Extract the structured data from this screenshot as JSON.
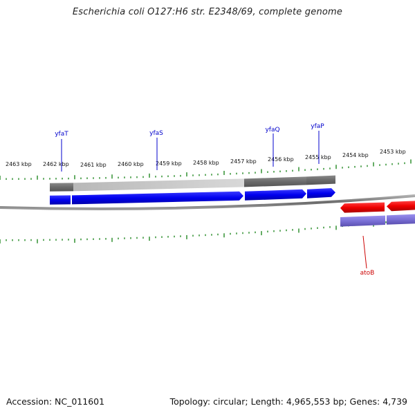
{
  "title": "Escherichia coli O127:H6 str. E2348/69, complete genome",
  "footer": {
    "accession": "Accession: NC_011601",
    "summary": "Topology: circular; Length: 4,965,553 bp; Genes: 4,739"
  },
  "ruler_labels": [
    "2463 kbp",
    "2462 kbp",
    "2461 kbp",
    "2460 kbp",
    "2459 kbp",
    "2458 kbp",
    "2457 kbp",
    "2456 kbp",
    "2455 kbp",
    "2454 kbp",
    "2453 kbp"
  ],
  "genes": [
    "yfaT",
    "yfaS",
    "yfaQ",
    "yfaP",
    "atoB"
  ],
  "colors": {
    "forward_label": "#0000cc",
    "reverse_label": "#cc0000",
    "forward_cds": "#0000ee",
    "reverse_cds": "#ee0000",
    "reverse_gene": "#7a6fd6",
    "gene_dark": "#6e6e6e",
    "gene_light": "#c4c4c4",
    "backbone": "#7a7a7a",
    "ticks": "#228822"
  }
}
